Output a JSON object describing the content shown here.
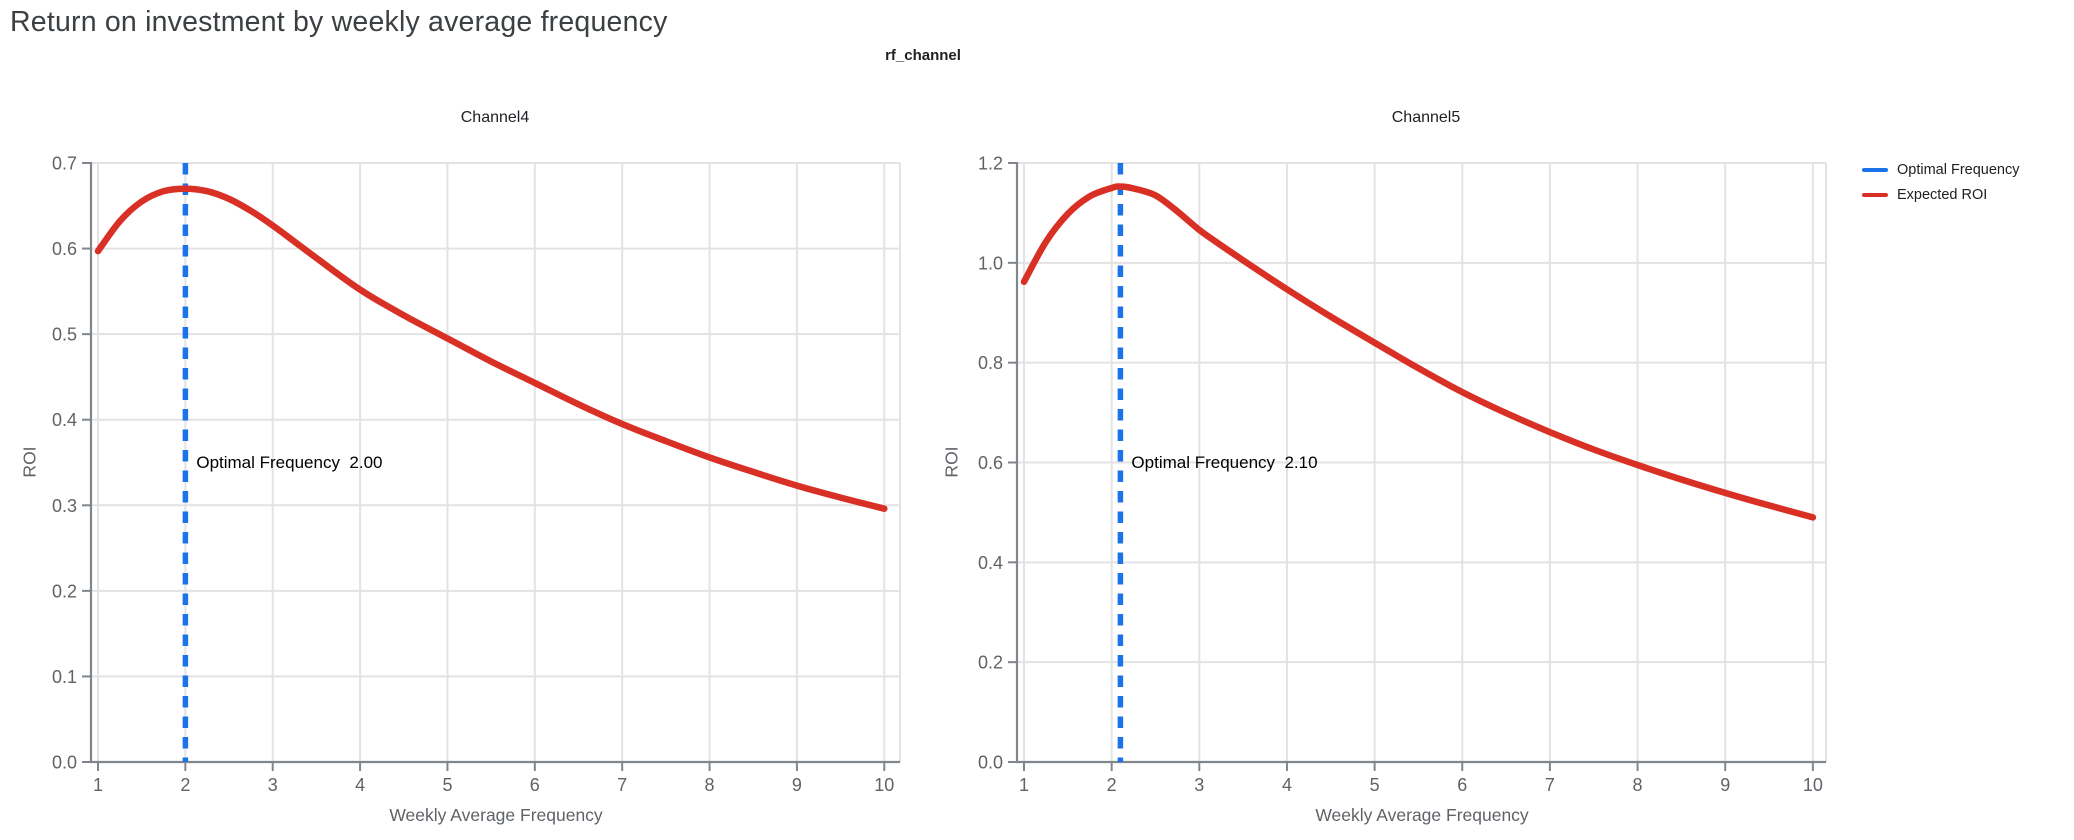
{
  "page": {
    "title": "Return on investment by weekly average frequency",
    "suptitle": "rf_channel"
  },
  "colors": {
    "optimal_frequency_blue": "#1a73e8",
    "expected_roi_red": "#d93025",
    "gridline": "#e3e3e3",
    "axis": "#80868b",
    "tick_text": "#5f6368"
  },
  "legend": {
    "items": [
      {
        "label": "Optimal Frequency",
        "color": "#1a73e8"
      },
      {
        "label": "Expected ROI",
        "color": "#d93025"
      }
    ]
  },
  "chart_data": [
    {
      "type": "line",
      "title": "Channel4",
      "xlabel": "Weekly Average Frequency",
      "ylabel": "ROI",
      "xlim": [
        0.92,
        10.18
      ],
      "ylim": [
        0,
        0.7
      ],
      "xticks": [
        1,
        2,
        3,
        4,
        5,
        6,
        7,
        8,
        9,
        10
      ],
      "xtick_labels": [
        "1",
        "2",
        "3",
        "4",
        "5",
        "6",
        "7",
        "8",
        "9",
        "10"
      ],
      "yticks": [
        0,
        0.1,
        0.2,
        0.3,
        0.4,
        0.5,
        0.6,
        0.7
      ],
      "ytick_labels": [
        "0.0",
        "0.1",
        "0.2",
        "0.3",
        "0.4",
        "0.5",
        "0.6",
        "0.7"
      ],
      "grid": true,
      "optimal_frequency": 2.0,
      "annotation": "Optimal Frequency  2.00",
      "series": [
        {
          "name": "Expected ROI",
          "color": "#d93025",
          "x": [
            1,
            1.25,
            1.5,
            1.75,
            2,
            2.25,
            2.5,
            2.75,
            3,
            3.25,
            3.5,
            4,
            4.5,
            5,
            5.5,
            6,
            6.5,
            7,
            7.5,
            8,
            8.5,
            9,
            9.5,
            10
          ],
          "y": [
            0.597,
            0.632,
            0.655,
            0.667,
            0.67,
            0.667,
            0.658,
            0.644,
            0.627,
            0.608,
            0.589,
            0.552,
            0.522,
            0.495,
            0.468,
            0.443,
            0.418,
            0.395,
            0.375,
            0.356,
            0.339,
            0.323,
            0.309,
            0.296
          ]
        }
      ]
    },
    {
      "type": "line",
      "title": "Channel5",
      "xlabel": "Weekly Average Frequency",
      "ylabel": "ROI",
      "xlim": [
        0.92,
        10.15
      ],
      "ylim": [
        0,
        1.2
      ],
      "xticks": [
        1,
        2,
        3,
        4,
        5,
        6,
        7,
        8,
        9,
        10
      ],
      "xtick_labels": [
        "1",
        "2",
        "3",
        "4",
        "5",
        "6",
        "7",
        "8",
        "9",
        "10"
      ],
      "yticks": [
        0,
        0.2,
        0.4,
        0.6,
        0.8,
        1.0,
        1.2
      ],
      "ytick_labels": [
        "0.0",
        "0.2",
        "0.4",
        "0.6",
        "0.8",
        "1.0",
        "1.2"
      ],
      "grid": true,
      "optimal_frequency": 2.1,
      "annotation": "Optimal Frequency  2.10",
      "series": [
        {
          "name": "Expected ROI",
          "color": "#d93025",
          "x": [
            1,
            1.25,
            1.5,
            1.75,
            2,
            2.1,
            2.25,
            2.5,
            2.75,
            3,
            3.25,
            3.5,
            4,
            4.5,
            5,
            5.5,
            6,
            6.5,
            7,
            7.5,
            8,
            8.5,
            9,
            9.5,
            10
          ],
          "y": [
            0.962,
            1.042,
            1.098,
            1.133,
            1.15,
            1.153,
            1.149,
            1.135,
            1.103,
            1.066,
            1.035,
            1.005,
            0.947,
            0.892,
            0.84,
            0.789,
            0.741,
            0.699,
            0.661,
            0.626,
            0.595,
            0.566,
            0.539,
            0.514,
            0.49
          ]
        }
      ]
    }
  ]
}
